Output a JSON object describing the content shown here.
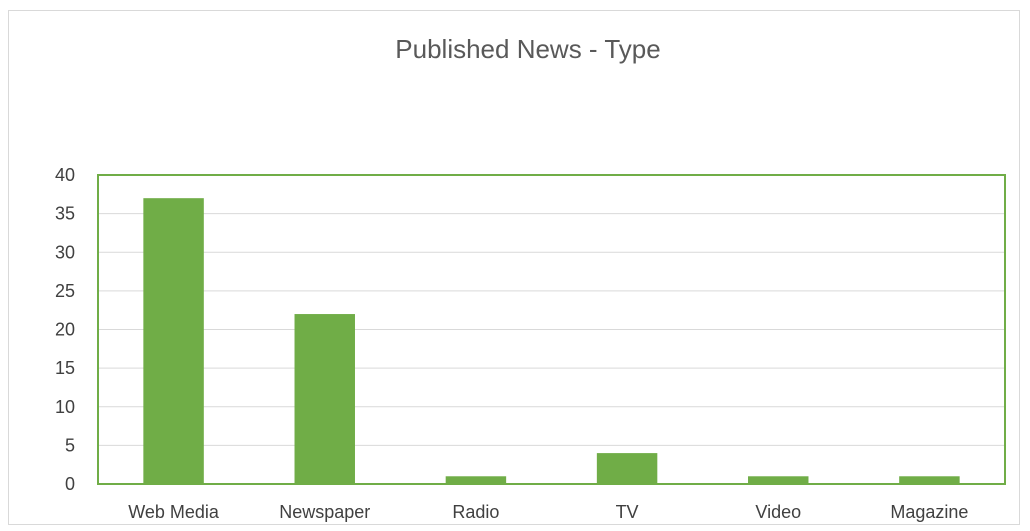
{
  "chart_data": {
    "type": "bar",
    "title": "Published News - Type",
    "xlabel": "",
    "ylabel": "",
    "categories": [
      "Web Media",
      "Newspaper",
      "Radio",
      "TV",
      "Video",
      "Magazine"
    ],
    "values": [
      37,
      22,
      1,
      4,
      1,
      1
    ],
    "ylim": [
      0,
      40
    ],
    "yticks": [
      0,
      5,
      10,
      15,
      20,
      25,
      30,
      35,
      40
    ],
    "grid": true,
    "legend": "none",
    "colors": {
      "bar": "#70ad47",
      "plot_border": "#70ad47",
      "grid": "#d9d9d9"
    }
  }
}
